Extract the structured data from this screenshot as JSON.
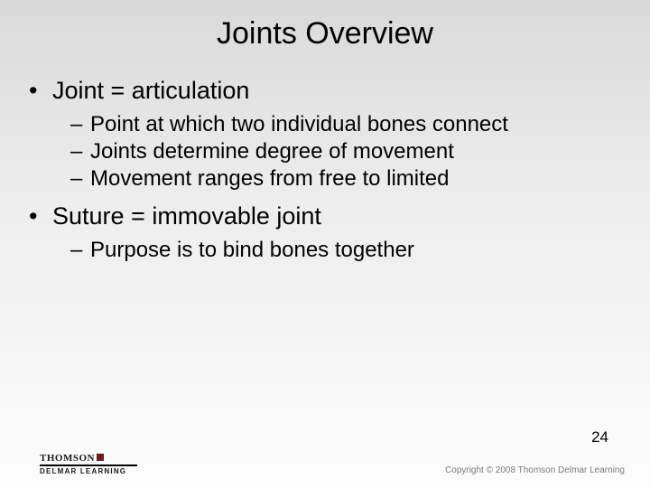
{
  "title": "Joints Overview",
  "bullets": [
    {
      "text": "Joint = articulation",
      "subs": [
        "Point at which two individual bones connect",
        "Joints determine degree of movement",
        "Movement ranges from free to limited"
      ]
    },
    {
      "text": "Suture = immovable joint",
      "subs": [
        "Purpose is to bind bones together"
      ]
    }
  ],
  "footer": {
    "logo_top": "THOMSON",
    "logo_bottom": "DELMAR LEARNING",
    "page_number": "24",
    "copyright": "Copyright © 2008 Thomson Delmar Learning"
  }
}
